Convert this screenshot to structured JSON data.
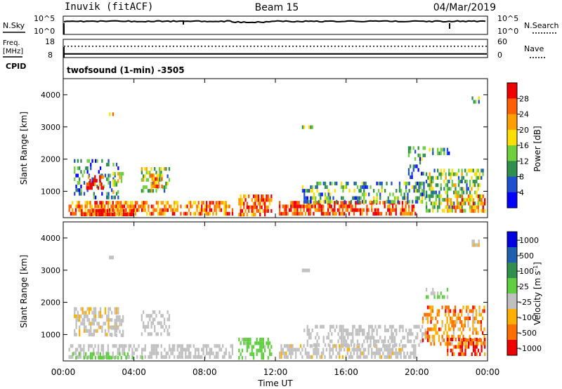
{
  "header": {
    "station": "Inuvik (fitACF)",
    "beam": "Beam 15",
    "date": "04/Mar/2019"
  },
  "summary": {
    "nsky_label": "N.Sky",
    "nsky_ticks": [
      "10^5",
      "10^0"
    ],
    "nsearch_label": "N.Search",
    "nsearch_ticks": [
      "10^5",
      "10^0"
    ],
    "freq_label_1": "Freq.",
    "freq_label_2": "[MHz]",
    "freq_ticks": [
      "18",
      "8"
    ],
    "nave_label": "Nave",
    "nave_ticks": [
      "60",
      "0"
    ],
    "cpid_label": "CPID",
    "cpid_value": "twofsound (1-min) -3505"
  },
  "chart_data": [
    {
      "type": "heatmap",
      "title": "",
      "ylabel": "Slant Range [km]",
      "xlabel": "Time UT",
      "x_ticks": [
        "00:00",
        "04:00",
        "08:00",
        "12:00",
        "16:00",
        "20:00",
        "00:00"
      ],
      "x_range": [
        "00:00",
        "24:00"
      ],
      "y_ticks": [
        "1000",
        "2000",
        "3000",
        "4000"
      ],
      "ylim": [
        180,
        4500
      ],
      "colorbar": {
        "label": "Power [dB]",
        "ticks": [
          "4",
          "8",
          "12",
          "16",
          "20",
          "24",
          "28"
        ],
        "range": [
          0,
          30
        ],
        "colors": [
          "#0000ff",
          "#1f4fd0",
          "#2f8f4f",
          "#6fcf3f",
          "#ffdf00",
          "#ff9f00",
          "#ff5f00",
          "#ef0000"
        ]
      },
      "scatter_regions": [
        {
          "t0": 0.3,
          "t1": 9.6,
          "r0": 200,
          "r1": 700,
          "v": 22,
          "density": 0.6
        },
        {
          "t0": 1.0,
          "t1": 4.0,
          "r0": 200,
          "r1": 450,
          "v": 27,
          "density": 0.8
        },
        {
          "t0": 0.6,
          "t1": 3.2,
          "r0": 700,
          "r1": 2000,
          "v": 8,
          "density": 0.28
        },
        {
          "t0": 1.3,
          "t1": 2.3,
          "r0": 1050,
          "r1": 1500,
          "v": 26,
          "density": 0.7
        },
        {
          "t0": 2.7,
          "t1": 3.4,
          "r0": 950,
          "r1": 1600,
          "v": 16,
          "density": 0.45
        },
        {
          "t0": 4.4,
          "t1": 6.0,
          "r0": 900,
          "r1": 1750,
          "v": 14,
          "density": 0.45
        },
        {
          "t0": 4.9,
          "t1": 5.6,
          "r0": 1150,
          "r1": 1550,
          "v": 21,
          "density": 0.6
        },
        {
          "t0": 9.9,
          "t1": 11.8,
          "r0": 200,
          "r1": 900,
          "v": 24,
          "density": 0.65
        },
        {
          "t0": 12.2,
          "t1": 20.0,
          "r0": 200,
          "r1": 700,
          "v": 26,
          "density": 0.6
        },
        {
          "t0": 13.5,
          "t1": 20.5,
          "r0": 600,
          "r1": 1300,
          "v": 10,
          "density": 0.35
        },
        {
          "t0": 19.5,
          "t1": 20.5,
          "r0": 1400,
          "r1": 2400,
          "v": 9,
          "density": 0.3
        },
        {
          "t0": 20.5,
          "t1": 23.8,
          "r0": 300,
          "r1": 1700,
          "v": 13,
          "density": 0.45
        },
        {
          "t0": 21.7,
          "t1": 23.9,
          "r0": 300,
          "r1": 900,
          "v": 22,
          "density": 0.55
        },
        {
          "t0": 23.1,
          "t1": 23.6,
          "r0": 3750,
          "r1": 3950,
          "v": 14,
          "density": 0.7
        },
        {
          "t0": 2.5,
          "t1": 2.9,
          "r0": 3300,
          "r1": 3450,
          "v": 20,
          "density": 0.6
        },
        {
          "t0": 13.5,
          "t1": 14.1,
          "r0": 2900,
          "r1": 3050,
          "v": 10,
          "density": 0.6
        },
        {
          "t0": 20.5,
          "t1": 21.9,
          "r0": 2100,
          "r1": 2350,
          "v": 9,
          "density": 0.35
        }
      ]
    },
    {
      "type": "heatmap",
      "title": "",
      "ylabel": "Slant Range [km]",
      "xlabel": "Time UT",
      "x_ticks": [
        "00:00",
        "04:00",
        "08:00",
        "12:00",
        "16:00",
        "20:00",
        "00:00"
      ],
      "x_range": [
        "00:00",
        "24:00"
      ],
      "y_ticks": [
        "1000",
        "2000",
        "3000",
        "4000"
      ],
      "ylim": [
        180,
        4500
      ],
      "colorbar": {
        "label": "Velocity [m s^-1]",
        "ticks": [
          "1000",
          "500",
          "100",
          "25",
          "-25",
          "-100",
          "-500",
          "-1000"
        ],
        "range": [
          -1200,
          1200
        ],
        "colors": [
          "#0000e0",
          "#1f5fb0",
          "#2f8f4f",
          "#5fcf3f",
          "#c0c0c0",
          "#ffaf00",
          "#ff6f00",
          "#ef0000"
        ]
      },
      "scatter_regions": [
        {
          "t0": 0.3,
          "t1": 9.6,
          "r0": 200,
          "r1": 700,
          "v": -110,
          "density": 0.55
        },
        {
          "t0": 0.5,
          "t1": 4.5,
          "r0": 200,
          "r1": 450,
          "v": 60,
          "density": 0.35
        },
        {
          "t0": 0.6,
          "t1": 3.2,
          "r0": 900,
          "r1": 1850,
          "v": -220,
          "density": 0.5
        },
        {
          "t0": 2.7,
          "t1": 3.4,
          "r0": 950,
          "r1": 1600,
          "v": -180,
          "density": 0.45
        },
        {
          "t0": 4.4,
          "t1": 6.0,
          "r0": 900,
          "r1": 1750,
          "v": -160,
          "density": 0.45
        },
        {
          "t0": 9.9,
          "t1": 11.8,
          "r0": 200,
          "r1": 900,
          "v": 50,
          "density": 0.55
        },
        {
          "t0": 12.2,
          "t1": 20.0,
          "r0": 200,
          "r1": 700,
          "v": -200,
          "density": 0.6
        },
        {
          "t0": 13.5,
          "t1": 20.5,
          "r0": 600,
          "r1": 1300,
          "v": -160,
          "density": 0.4
        },
        {
          "t0": 20.3,
          "t1": 23.9,
          "r0": 600,
          "r1": 1900,
          "v": -600,
          "density": 0.45
        },
        {
          "t0": 21.7,
          "t1": 23.9,
          "r0": 300,
          "r1": 900,
          "v": -900,
          "density": 0.5
        },
        {
          "t0": 23.1,
          "t1": 23.6,
          "r0": 3750,
          "r1": 3950,
          "v": -200,
          "density": 0.7
        },
        {
          "t0": 2.5,
          "t1": 2.9,
          "r0": 3300,
          "r1": 3450,
          "v": -150,
          "density": 0.6
        },
        {
          "t0": 13.5,
          "t1": 14.1,
          "r0": 2900,
          "r1": 3050,
          "v": -150,
          "density": 0.6
        },
        {
          "t0": 20.5,
          "t1": 21.9,
          "r0": 2150,
          "r1": 2450,
          "v": 0,
          "density": 0.35
        }
      ]
    }
  ],
  "summary_series": {
    "nsky_level": 0.72,
    "freq_level": 0.2,
    "nave_level": 0.62
  }
}
